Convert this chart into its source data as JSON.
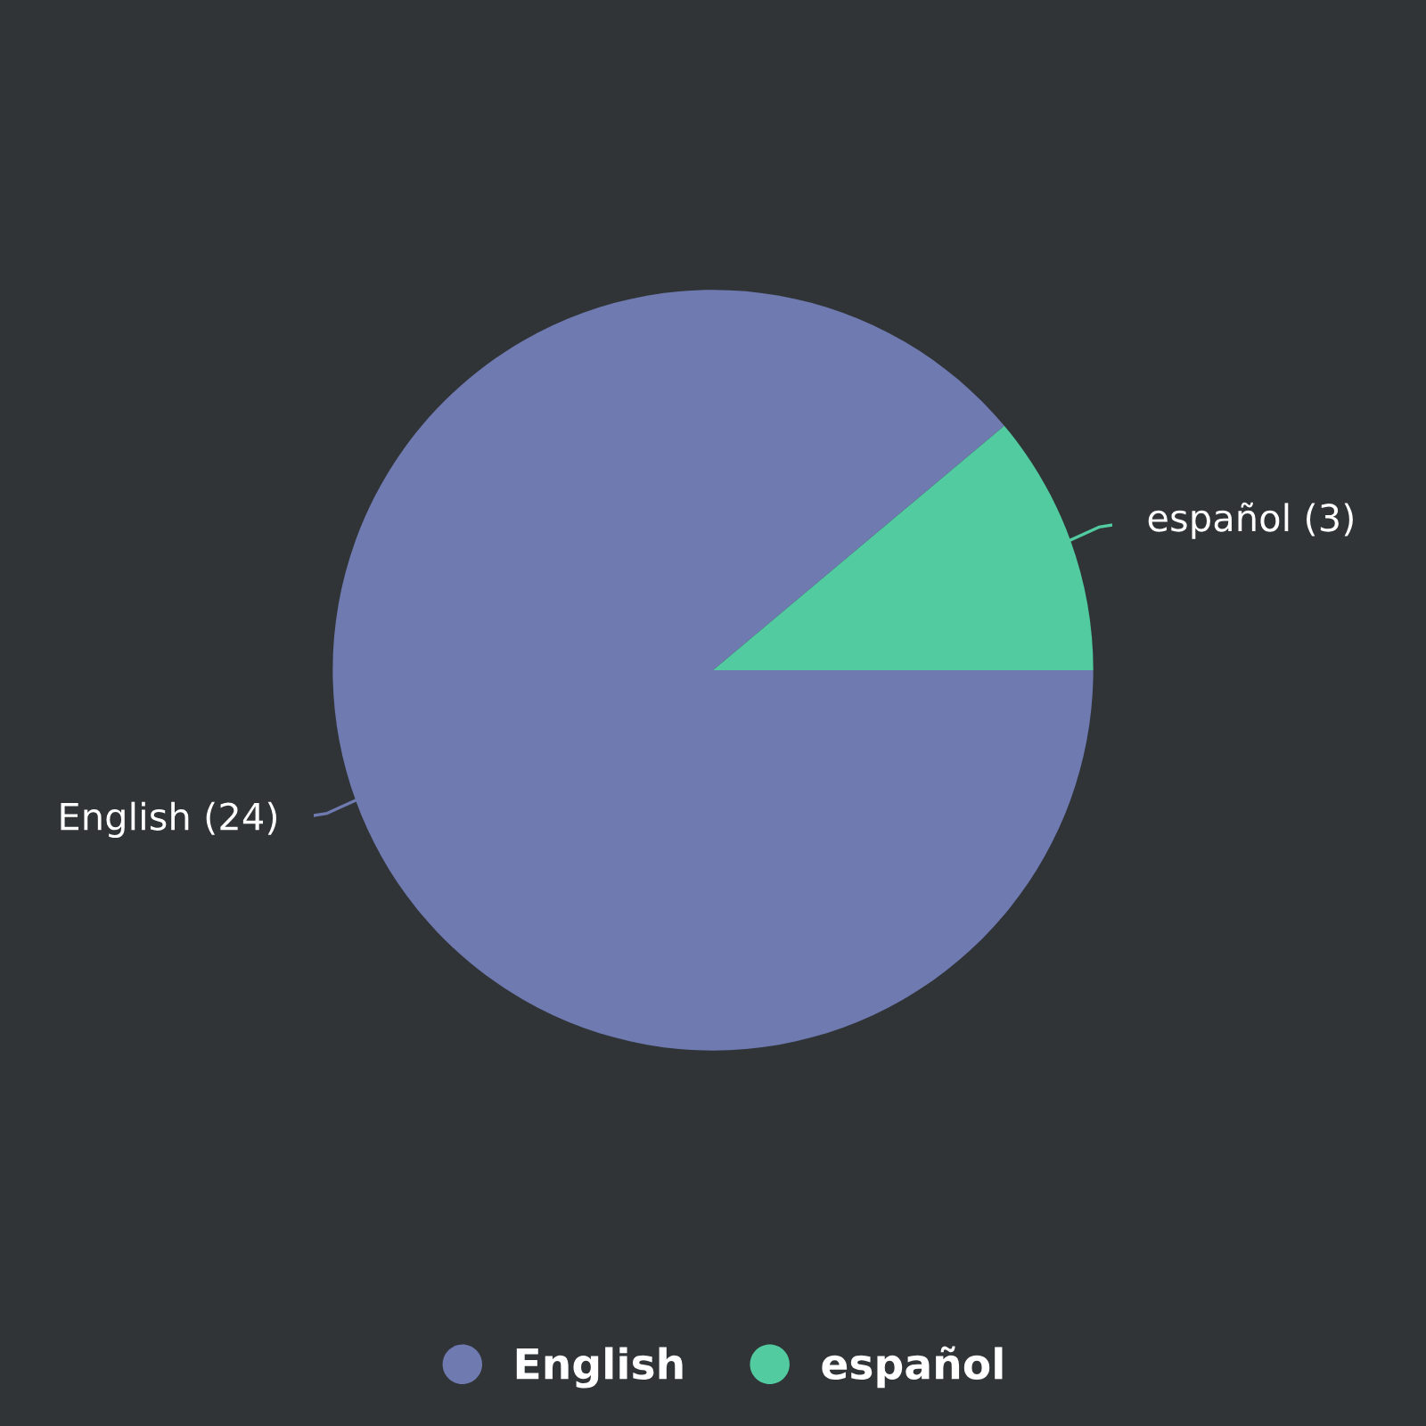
{
  "chart_data": {
    "type": "pie",
    "categories": [
      "English",
      "español"
    ],
    "values": [
      24,
      3
    ],
    "colors": [
      "#6e7ab0",
      "#52cba0"
    ],
    "value_labels": [
      "English (24)",
      "español (3)"
    ],
    "legend": "bottom"
  }
}
